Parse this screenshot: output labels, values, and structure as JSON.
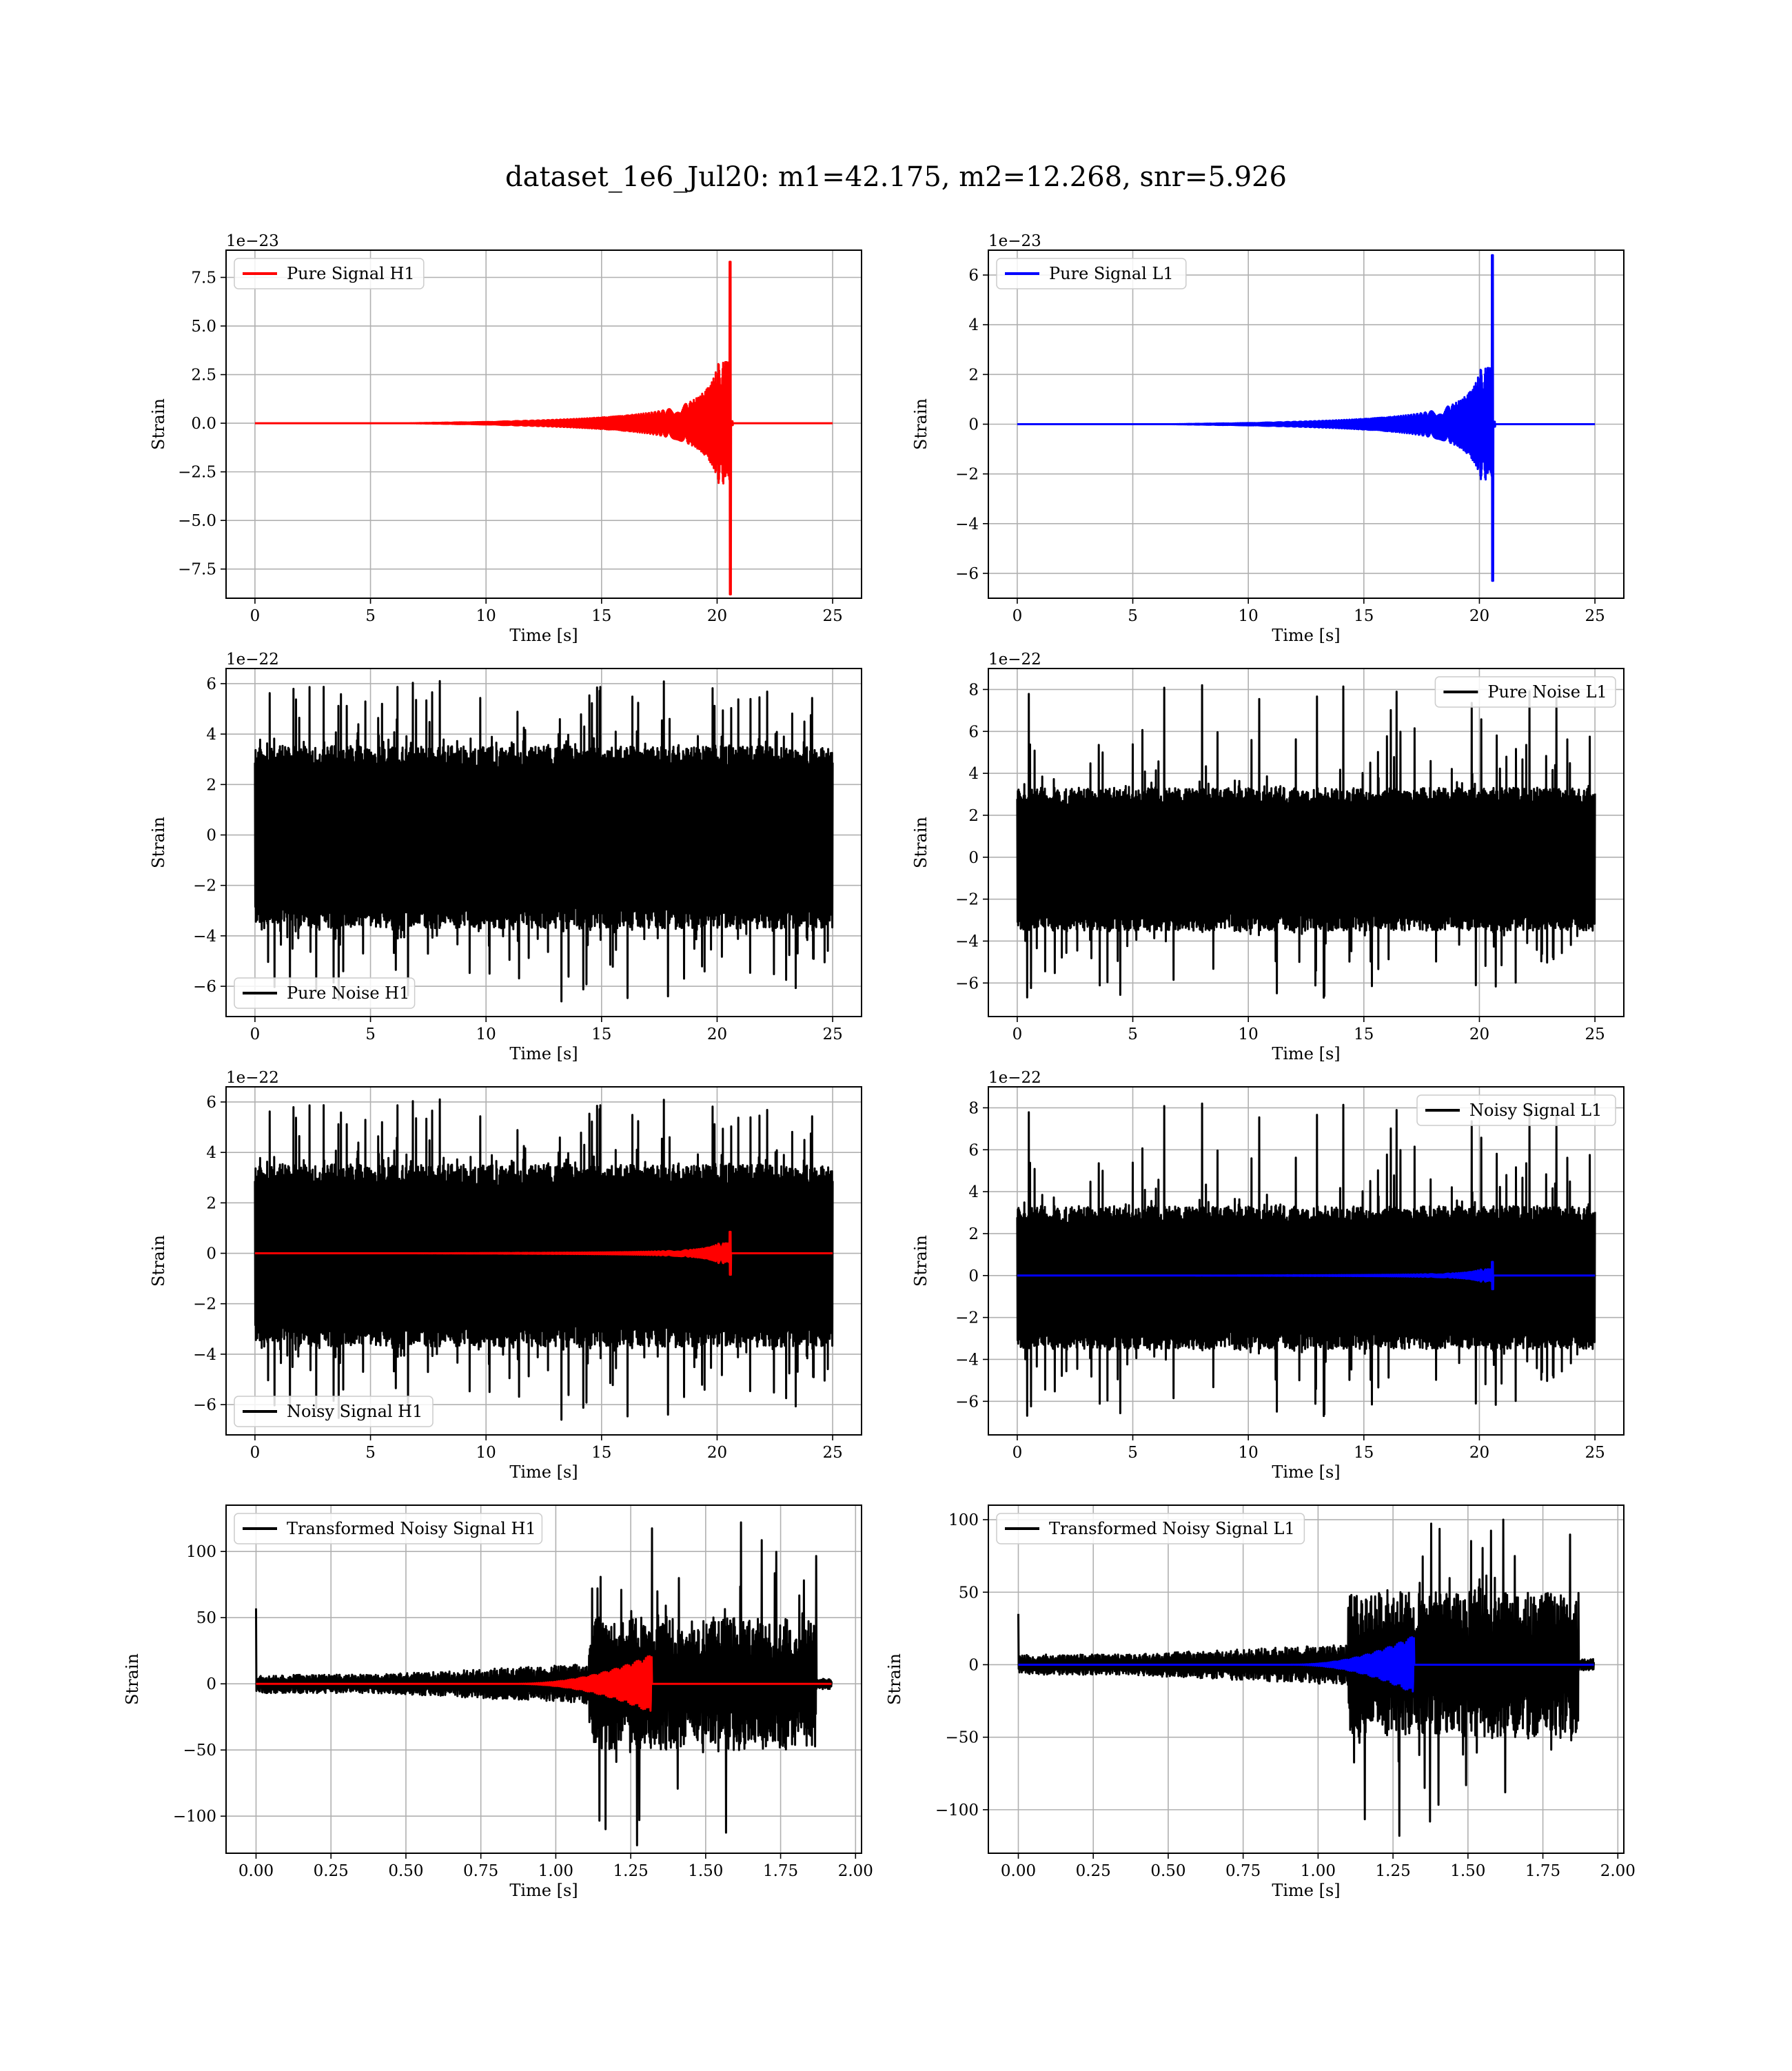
{
  "figure": {
    "suptitle": "dataset_1e6_Jul20: m1=42.175, m2=12.268, snr=5.926"
  },
  "colors": {
    "h1_signal": "#ff0000",
    "l1_signal": "#0000ff",
    "noise": "#000000",
    "grid": "#b0b0b0"
  },
  "chart_data": [
    {
      "type": "line",
      "xlabel": "Time [s]",
      "ylabel": "Strain",
      "offset_text": "1e−23",
      "xlim": [
        -1.25,
        26.25
      ],
      "ylim": [
        -9.0,
        8.9
      ],
      "xticks": [
        0,
        5,
        10,
        15,
        20,
        25
      ],
      "xtick_labels": [
        "0",
        "5",
        "10",
        "15",
        "20",
        "25"
      ],
      "yticks": [
        -7.5,
        -5.0,
        -2.5,
        0.0,
        2.5,
        5.0,
        7.5
      ],
      "ytick_labels": [
        "−7.5",
        "−5.0",
        "−2.5",
        "0.0",
        "2.5",
        "5.0",
        "7.5"
      ],
      "grid": true,
      "legend": "upper-left",
      "series": [
        {
          "name": "Pure Signal H1",
          "color": "#ff0000",
          "kind": "chirp",
          "x_range": [
            0,
            25
          ],
          "t_merge": 20.6,
          "peak_max": 8.3,
          "peak_min": -8.8,
          "pre_amp": 3.2,
          "ring": 0.1
        }
      ]
    },
    {
      "type": "line",
      "xlabel": "Time [s]",
      "ylabel": "Strain",
      "offset_text": "1e−23",
      "xlim": [
        -1.25,
        26.25
      ],
      "ylim": [
        -7.0,
        7.0
      ],
      "xticks": [
        0,
        5,
        10,
        15,
        20,
        25
      ],
      "xtick_labels": [
        "0",
        "5",
        "10",
        "15",
        "20",
        "25"
      ],
      "yticks": [
        -6,
        -4,
        -2,
        0,
        2,
        4,
        6
      ],
      "ytick_labels": [
        "−6",
        "−4",
        "−2",
        "0",
        "2",
        "4",
        "6"
      ],
      "grid": true,
      "legend": "upper-left",
      "series": [
        {
          "name": "Pure Signal L1",
          "color": "#0000ff",
          "kind": "chirp",
          "x_range": [
            0,
            25
          ],
          "t_merge": 20.6,
          "peak_max": 6.8,
          "peak_min": -6.3,
          "pre_amp": 2.3,
          "ring": 0.1
        }
      ]
    },
    {
      "type": "line",
      "xlabel": "Time [s]",
      "ylabel": "Strain",
      "offset_text": "1e−22",
      "xlim": [
        -1.25,
        26.25
      ],
      "ylim": [
        -7.2,
        6.6
      ],
      "xticks": [
        0,
        5,
        10,
        15,
        20,
        25
      ],
      "xtick_labels": [
        "0",
        "5",
        "10",
        "15",
        "20",
        "25"
      ],
      "yticks": [
        -6,
        -4,
        -2,
        0,
        2,
        4,
        6
      ],
      "ytick_labels": [
        "−6",
        "−4",
        "−2",
        "0",
        "2",
        "4",
        "6"
      ],
      "grid": true,
      "legend": "lower-left",
      "series": [
        {
          "name": "Pure Noise H1",
          "color": "#000000",
          "kind": "noise",
          "x_range": [
            0,
            25
          ],
          "band_max": 3.5,
          "band_min": -3.7,
          "spike_max": 6.1,
          "spike_min": -6.6,
          "seed": 11
        }
      ]
    },
    {
      "type": "line",
      "xlabel": "Time [s]",
      "ylabel": "Strain",
      "offset_text": "1e−22",
      "xlim": [
        -1.25,
        26.25
      ],
      "ylim": [
        -7.6,
        9.0
      ],
      "xticks": [
        0,
        5,
        10,
        15,
        20,
        25
      ],
      "xtick_labels": [
        "0",
        "5",
        "10",
        "15",
        "20",
        "25"
      ],
      "yticks": [
        -6,
        -4,
        -2,
        0,
        2,
        4,
        6,
        8
      ],
      "ytick_labels": [
        "−6",
        "−4",
        "−2",
        "0",
        "2",
        "4",
        "6",
        "8"
      ],
      "grid": true,
      "legend": "upper-right",
      "series": [
        {
          "name": "Pure Noise L1",
          "color": "#000000",
          "kind": "noise",
          "x_range": [
            0,
            25
          ],
          "band_max": 3.3,
          "band_min": -3.5,
          "spike_max": 8.2,
          "spike_min": -6.7,
          "seed": 23
        }
      ]
    },
    {
      "type": "line",
      "xlabel": "Time [s]",
      "ylabel": "Strain",
      "offset_text": "1e−22",
      "xlim": [
        -1.25,
        26.25
      ],
      "ylim": [
        -7.2,
        6.6
      ],
      "xticks": [
        0,
        5,
        10,
        15,
        20,
        25
      ],
      "xtick_labels": [
        "0",
        "5",
        "10",
        "15",
        "20",
        "25"
      ],
      "yticks": [
        -6,
        -4,
        -2,
        0,
        2,
        4,
        6
      ],
      "ytick_labels": [
        "−6",
        "−4",
        "−2",
        "0",
        "2",
        "4",
        "6"
      ],
      "grid": true,
      "legend": "lower-left",
      "series": [
        {
          "name": "Noisy Signal H1",
          "color": "#000000",
          "kind": "noise",
          "x_range": [
            0,
            25
          ],
          "band_max": 3.5,
          "band_min": -3.7,
          "spike_max": 6.1,
          "spike_min": -6.6,
          "seed": 11
        },
        {
          "name": "",
          "color": "#ff0000",
          "kind": "chirp",
          "x_range": [
            0,
            25
          ],
          "t_merge": 20.6,
          "peak_max": 0.85,
          "peak_min": -0.85,
          "pre_amp": 0.4,
          "ring": 0.0
        }
      ]
    },
    {
      "type": "line",
      "xlabel": "Time [s]",
      "ylabel": "Strain",
      "offset_text": "1e−22",
      "xlim": [
        -1.25,
        26.25
      ],
      "ylim": [
        -7.6,
        9.0
      ],
      "xticks": [
        0,
        5,
        10,
        15,
        20,
        25
      ],
      "xtick_labels": [
        "0",
        "5",
        "10",
        "15",
        "20",
        "25"
      ],
      "yticks": [
        -6,
        -4,
        -2,
        0,
        2,
        4,
        6,
        8
      ],
      "ytick_labels": [
        "−6",
        "−4",
        "−2",
        "0",
        "2",
        "4",
        "6",
        "8"
      ],
      "grid": true,
      "legend": "upper-right",
      "series": [
        {
          "name": "Noisy Signal L1",
          "color": "#000000",
          "kind": "noise",
          "x_range": [
            0,
            25
          ],
          "band_max": 3.3,
          "band_min": -3.5,
          "spike_max": 8.2,
          "spike_min": -6.7,
          "seed": 23
        },
        {
          "name": "",
          "color": "#0000ff",
          "kind": "chirp",
          "x_range": [
            0,
            25
          ],
          "t_merge": 20.6,
          "peak_max": 0.65,
          "peak_min": -0.65,
          "pre_amp": 0.3,
          "ring": 0.0
        }
      ]
    },
    {
      "type": "line",
      "xlabel": "Time [s]",
      "ylabel": "Strain",
      "offset_text": "",
      "xlim": [
        -0.1,
        2.02
      ],
      "ylim": [
        -128,
        135
      ],
      "xticks": [
        0.0,
        0.25,
        0.5,
        0.75,
        1.0,
        1.25,
        1.5,
        1.75,
        2.0
      ],
      "xtick_labels": [
        "0.00",
        "0.25",
        "0.50",
        "0.75",
        "1.00",
        "1.25",
        "1.50",
        "1.75",
        "2.00"
      ],
      "yticks": [
        -100,
        -50,
        0,
        50,
        100
      ],
      "ytick_labels": [
        "−100",
        "−50",
        "0",
        "50",
        "100"
      ],
      "grid": true,
      "legend": "upper-left",
      "series": [
        {
          "name": "Transformed Noisy Signal H1",
          "color": "#000000",
          "kind": "transformed",
          "x_range": [
            0,
            1.92
          ],
          "low_band": 7,
          "mid_start": 0.4,
          "mid_band": 15,
          "high_start": 1.11,
          "high_band": 50,
          "high_end": 1.87,
          "spike_max": 122,
          "spike_min": -122,
          "start_spike": 57,
          "seed": 37
        },
        {
          "name": "",
          "color": "#ff0000",
          "kind": "tchirp",
          "x_range": [
            0,
            1.92
          ],
          "t_merge": 1.32,
          "peak": 22,
          "start": 0.85
        }
      ]
    },
    {
      "type": "line",
      "xlabel": "Time [s]",
      "ylabel": "Strain",
      "offset_text": "",
      "xlim": [
        -0.1,
        2.02
      ],
      "ylim": [
        -130,
        110
      ],
      "xticks": [
        0.0,
        0.25,
        0.5,
        0.75,
        1.0,
        1.25,
        1.5,
        1.75,
        2.0
      ],
      "xtick_labels": [
        "0.00",
        "0.25",
        "0.50",
        "0.75",
        "1.00",
        "1.25",
        "1.50",
        "1.75",
        "2.00"
      ],
      "yticks": [
        -100,
        -50,
        0,
        50,
        100
      ],
      "ytick_labels": [
        "−100",
        "−50",
        "0",
        "50",
        "100"
      ],
      "grid": true,
      "legend": "upper-left",
      "series": [
        {
          "name": "Transformed Noisy Signal L1",
          "color": "#000000",
          "kind": "transformed",
          "x_range": [
            0,
            1.92
          ],
          "low_band": 7,
          "mid_start": 0.35,
          "mid_band": 14,
          "high_start": 1.1,
          "high_band": 50,
          "high_end": 1.87,
          "spike_max": 100,
          "spike_min": -118,
          "start_spike": 35,
          "seed": 53
        },
        {
          "name": "",
          "color": "#0000ff",
          "kind": "tchirp",
          "x_range": [
            0,
            1.92
          ],
          "t_merge": 1.32,
          "peak": 20,
          "start": 0.9
        }
      ]
    }
  ]
}
